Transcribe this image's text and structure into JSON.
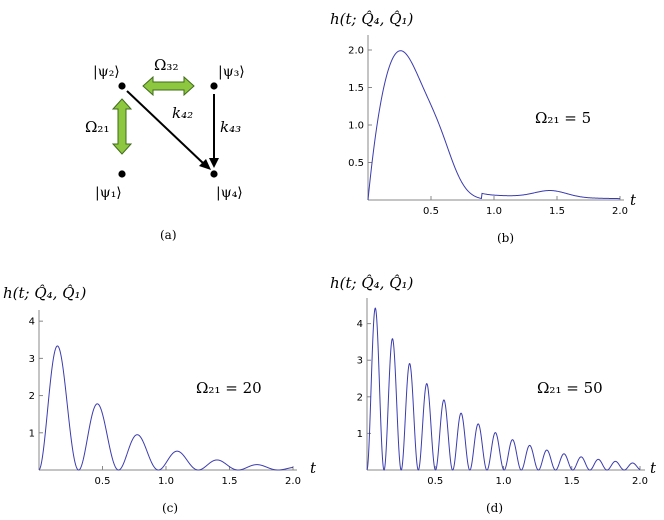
{
  "diagram": {
    "states": {
      "psi1": "|ψ₁⟩",
      "psi2": "|ψ₂⟩",
      "psi3": "|ψ₃⟩",
      "psi4": "|ψ₄⟩"
    },
    "labels": {
      "omega32": "Ω₃₂",
      "omega21": "Ω₂₁",
      "k42": "k₄₂",
      "k43": "k₄₃"
    },
    "colors": {
      "coupling_arrow": "#8DC63F",
      "decay_arrow": "#000000"
    }
  },
  "panel_labels": {
    "a": "(a)",
    "b": "(b)",
    "c": "(c)",
    "d": "(d)"
  },
  "chart_data": [
    {
      "panel": "b",
      "type": "line",
      "title": "h(t; Q̂₄, Q̂₁)",
      "xlabel": "t",
      "annotation": "Ω₂₁ = 5",
      "xlim": [
        0,
        2.0
      ],
      "ylim": [
        0,
        2.2
      ],
      "xticks": [
        "0.5",
        "1.0",
        "1.5",
        "2.0"
      ],
      "yticks": [
        "0.5",
        "1.0",
        "1.5",
        "2.0"
      ],
      "omega": 5,
      "color": "#3B3BB0"
    },
    {
      "panel": "c",
      "type": "line",
      "title": "h(t; Q̂₄, Q̂₁)",
      "xlabel": "t",
      "annotation": "Ω₂₁ = 20",
      "xlim": [
        0,
        2.0
      ],
      "ylim": [
        0,
        4.3
      ],
      "xticks": [
        "0.5",
        "1.0",
        "1.5",
        "2.0"
      ],
      "yticks": [
        "1",
        "2",
        "3",
        "4"
      ],
      "omega": 20,
      "color": "#3B3BB0"
    },
    {
      "panel": "d",
      "type": "line",
      "title": "h(t; Q̂₄, Q̂₁)",
      "xlabel": "t",
      "annotation": "Ω₂₁ = 50",
      "xlim": [
        0,
        2.0
      ],
      "ylim": [
        0,
        4.7
      ],
      "xticks": [
        "0.5",
        "1.0",
        "1.5",
        "2.0"
      ],
      "yticks": [
        "1",
        "2",
        "3",
        "4"
      ],
      "omega": 50,
      "color": "#3B3BB0"
    }
  ]
}
